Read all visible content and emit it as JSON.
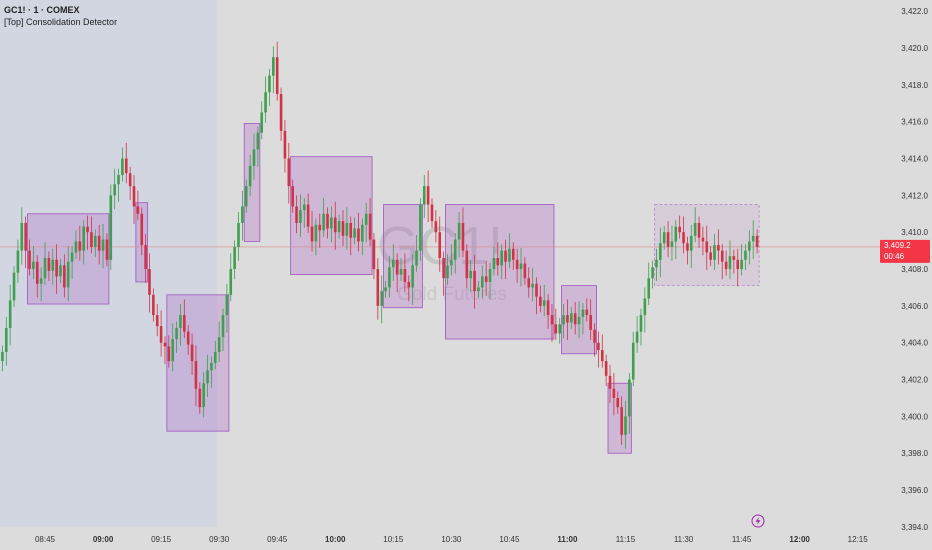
{
  "header": {
    "symbol_line": "GC1! · 1 · COMEX",
    "indicator": "[Top] Consolidation Detector"
  },
  "watermark": {
    "symbol": "GC1!",
    "description": "Gold Futures"
  },
  "colors": {
    "background": "#dcdcdc",
    "session_background": "#d2d6e1",
    "up": "#3f9e50",
    "down": "#cf3346",
    "box_fill": "rgba(160,60,190,0.22)",
    "box_border": "#a052c0",
    "price_line": "#e08a8a",
    "price_label": "#f23645",
    "icon": "#9c27b0"
  },
  "chart_data": {
    "type": "candlestick",
    "title": "",
    "interval_minutes": 1,
    "first_candle_time": "08:34",
    "first_open": 3403.0,
    "close": [
      3403.5,
      3404.8,
      3406.3,
      3407.8,
      3409.0,
      3410.5,
      3409.0,
      3408.0,
      3408.4,
      3407.2,
      3407.5,
      3408.6,
      3407.9,
      3408.5,
      3407.6,
      3408.2,
      3407.0,
      3408.4,
      3408.9,
      3409.5,
      3409.0,
      3410.3,
      3410.0,
      3409.2,
      3409.8,
      3409.0,
      3409.6,
      3408.5,
      3412.0,
      3412.6,
      3413.1,
      3414.0,
      3413.2,
      3412.5,
      3411.4,
      3411.0,
      3409.3,
      3408.0,
      3406.6,
      3405.5,
      3404.9,
      3404.0,
      3403.8,
      3403.0,
      3404.2,
      3404.8,
      3405.5,
      3404.6,
      3403.9,
      3403.0,
      3401.5,
      3400.5,
      3401.8,
      3402.5,
      3402.9,
      3403.5,
      3404.3,
      3405.5,
      3406.6,
      3408.0,
      3409.2,
      3410.5,
      3411.4,
      3412.5,
      3413.6,
      3414.5,
      3415.4,
      3416.5,
      3417.6,
      3418.5,
      3419.5,
      3417.5,
      3415.5,
      3414.0,
      3412.5,
      3411.4,
      3410.5,
      3411.2,
      3411.5,
      3410.3,
      3409.5,
      3410.4,
      3410.1,
      3411.0,
      3410.2,
      3410.8,
      3410.0,
      3410.6,
      3409.8,
      3410.5,
      3409.7,
      3410.2,
      3409.5,
      3410.4,
      3411.0,
      3409.6,
      3408.0,
      3406.0,
      3406.8,
      3407.0,
      3408.1,
      3408.5,
      3407.7,
      3408.0,
      3407.3,
      3407.0,
      3408.2,
      3409.0,
      3411.5,
      3412.5,
      3411.5,
      3410.6,
      3410.0,
      3408.6,
      3407.5,
      3408.2,
      3408.5,
      3409.6,
      3410.5,
      3409.0,
      3407.5,
      3407.9,
      3406.8,
      3407.0,
      3407.6,
      3407.3,
      3408.0,
      3408.6,
      3408.2,
      3409.0,
      3408.4,
      3409.1,
      3408.5,
      3408.0,
      3408.3,
      3407.5,
      3407.0,
      3407.2,
      3406.5,
      3406.0,
      3406.3,
      3405.5,
      3405.0,
      3404.5,
      3405.0,
      3405.5,
      3405.1,
      3405.6,
      3405.0,
      3405.4,
      3405.8,
      3405.5,
      3404.7,
      3404.0,
      3403.6,
      3403.0,
      3402.2,
      3401.5,
      3401.0,
      3400.5,
      3399.0,
      3400.0,
      3402.0,
      3404.0,
      3404.6,
      3405.5,
      3406.4,
      3407.5,
      3408.1,
      3408.5,
      3409.4,
      3410.0,
      3409.2,
      3409.5,
      3410.3,
      3410.0,
      3409.4,
      3409.0,
      3409.8,
      3410.5,
      3409.7,
      3409.5,
      3408.9,
      3408.5,
      3409.3,
      3409.0,
      3408.4,
      3408.0,
      3408.7,
      3408.5,
      3408.0,
      3408.5,
      3409.0,
      3409.5,
      3409.8,
      3409.2
    ],
    "consolidation_boxes": [
      {
        "start": "08:41",
        "end": "09:01",
        "top": 3411.0,
        "bottom": 3406.1,
        "active": false
      },
      {
        "start": "09:09",
        "end": "09:11",
        "top": 3411.6,
        "bottom": 3407.3,
        "active": false
      },
      {
        "start": "09:17",
        "end": "09:32",
        "top": 3406.6,
        "bottom": 3399.2,
        "active": false
      },
      {
        "start": "09:37",
        "end": "09:40",
        "top": 3415.9,
        "bottom": 3409.5,
        "active": false
      },
      {
        "start": "09:49",
        "end": "10:09",
        "top": 3414.1,
        "bottom": 3407.7,
        "active": false
      },
      {
        "start": "10:13",
        "end": "10:22",
        "top": 3411.5,
        "bottom": 3405.9,
        "active": false
      },
      {
        "start": "10:29",
        "end": "10:56",
        "top": 3411.5,
        "bottom": 3404.2,
        "active": false
      },
      {
        "start": "10:59",
        "end": "11:07",
        "top": 3407.1,
        "bottom": 3403.4,
        "active": false
      },
      {
        "start": "11:11",
        "end": "11:16",
        "top": 3401.8,
        "bottom": 3398.0,
        "active": false
      },
      {
        "start": "11:23",
        "end": "11:49",
        "top": 3411.5,
        "bottom": 3407.1,
        "active": true
      }
    ],
    "session_end": "09:30",
    "last_price": "3,409.2",
    "last_price_value": 3409.2,
    "countdown": "00:46",
    "y_ticks": [
      "3,422.0",
      "3,420.0",
      "3,418.0",
      "3,416.0",
      "3,414.0",
      "3,412.0",
      "3,410.0",
      "3,408.0",
      "3,406.0",
      "3,404.0",
      "3,402.0",
      "3,400.0",
      "3,398.0",
      "3,396.0",
      "3,394.0"
    ],
    "y_tick_values": [
      3422,
      3420,
      3418,
      3416,
      3414,
      3412,
      3410,
      3408,
      3406,
      3404,
      3402,
      3400,
      3398,
      3396,
      3394
    ],
    "x_ticks": [
      "08:45",
      "09:00",
      "09:15",
      "09:30",
      "09:45",
      "10:00",
      "10:15",
      "10:30",
      "10:45",
      "11:00",
      "11:15",
      "11:30",
      "11:45",
      "12:00",
      "12:15"
    ],
    "x_bold_ticks": [
      "09:00",
      "10:00",
      "11:00",
      "12:00"
    ]
  },
  "icons": {
    "bottom": "lightning-icon"
  }
}
